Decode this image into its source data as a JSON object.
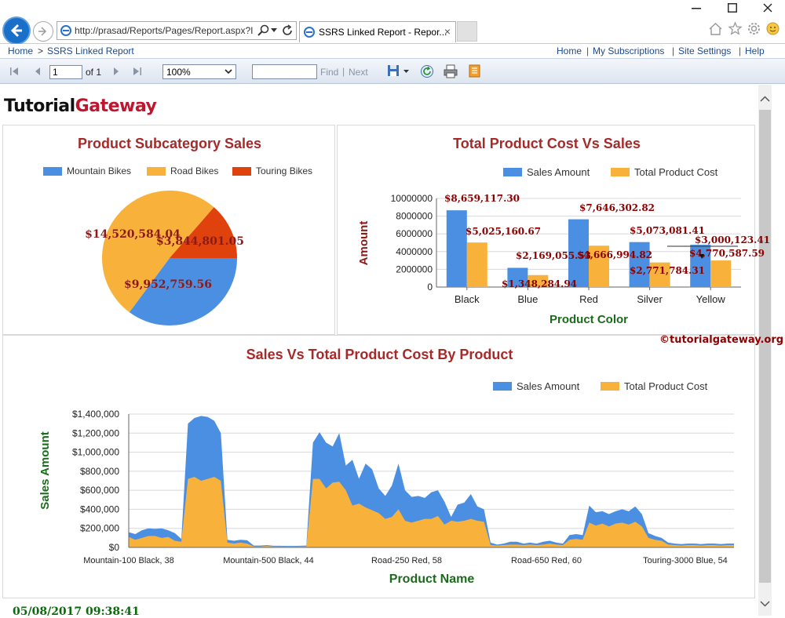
{
  "browser": {
    "address": "http://prasad/Reports/Pages/Report.aspx?I",
    "tab_title": "SSRS Linked Report - Repor...",
    "tab_close": "×"
  },
  "breadcrumb": {
    "home": "Home",
    "sep": ">",
    "current": "SSRS Linked Report"
  },
  "header_links": {
    "home": "Home",
    "subscriptions": "My Subscriptions",
    "settings": "Site Settings",
    "help": "Help",
    "sep": "|"
  },
  "toolbar": {
    "page": "1",
    "of_label": "of 1",
    "zoom": "100%",
    "find": "Find",
    "sep": "|",
    "next": "Next"
  },
  "logo": {
    "part1": "Tutorial",
    "part2": "Gateway"
  },
  "watermark": "©tutorialgateway.org",
  "timestamp": "05/08/2017 09:38:41",
  "colors": {
    "blue": "#4a8fe2",
    "orange": "#f8b23c",
    "red": "#e0420e",
    "title": "#a52a2a",
    "axis_title": "#1a6b1a"
  },
  "chart_data": [
    {
      "type": "pie",
      "title": "Product Subcategory Sales",
      "categories": [
        "Mountain Bikes",
        "Road Bikes",
        "Touring Bikes"
      ],
      "values": [
        9952759.56,
        14520584.04,
        3844801.05
      ],
      "labels": [
        "$9,952,759.56",
        "$14,520,584.04",
        "$3,844,801.05"
      ],
      "legend": "top"
    },
    {
      "type": "bar",
      "title": "Total Product Cost Vs Sales",
      "xlabel": "Product Color",
      "ylabel": "Amount",
      "categories": [
        "Black",
        "Blue",
        "Red",
        "Silver",
        "Yellow"
      ],
      "series": [
        {
          "name": "Sales Amount",
          "values": [
            8659117.3,
            2169055.53,
            7646302.82,
            5073081.41,
            4770587.59
          ],
          "labels": [
            "$8,659,117.30",
            "$2,169,055.53",
            "$7,646,302.82",
            "$5,073,081.41",
            "$4,770,587.59"
          ]
        },
        {
          "name": "Total Product Cost",
          "values": [
            5025160.67,
            1348284.94,
            4666994.82,
            2771784.31,
            3000123.41
          ],
          "labels": [
            "$5,025,160.67",
            "$1,348,284.94",
            "$4,666,994.82",
            "$2,771,784.31",
            "$3,000,123.41"
          ]
        }
      ],
      "yticks": [
        "10000000",
        "8000000",
        "6000000",
        "4000000",
        "2000000",
        "0"
      ],
      "ylim": [
        0,
        10000000
      ],
      "legend": "top-right",
      "grid": true
    },
    {
      "type": "area",
      "title": "Sales Vs Total Product Cost By Product",
      "xlabel": "Product Name",
      "ylabel": "Sales Amount",
      "xticks": [
        "Mountain-100 Black, 38",
        "Mountain-500 Black, 44",
        "Road-250 Red, 58",
        "Road-650 Red, 60",
        "Touring-3000 Blue, 54"
      ],
      "yticks": [
        "$1,400,000",
        "$1,200,000",
        "$1,000,000",
        "$800,000",
        "$600,000",
        "$400,000",
        "$200,000",
        "$0"
      ],
      "ylim": [
        0,
        1400000
      ],
      "legend": "top-right",
      "grid": true,
      "series": [
        {
          "name": "Sales Amount",
          "values": [
            160000,
            140000,
            180000,
            200000,
            195000,
            200000,
            180000,
            150000,
            90000,
            1300000,
            1360000,
            1380000,
            1370000,
            1330000,
            1200000,
            80000,
            70000,
            80000,
            75000,
            20000,
            20000,
            25000,
            18000,
            18000,
            15000,
            15000,
            18000,
            20000,
            1100000,
            1210000,
            1100000,
            1060000,
            1200000,
            860000,
            920000,
            720000,
            880000,
            820000,
            620000,
            540000,
            650000,
            880000,
            600000,
            530000,
            540000,
            520000,
            580000,
            600000,
            480000,
            320000,
            450000,
            470000,
            560000,
            430000,
            400000,
            50000,
            30000,
            40000,
            60000,
            60000,
            40000,
            50000,
            40000,
            60000,
            70000,
            50000,
            40000,
            130000,
            140000,
            130000,
            440000,
            370000,
            380000,
            350000,
            380000,
            400000,
            380000,
            430000,
            350000,
            150000,
            120000,
            100000,
            50000,
            40000,
            35000,
            40000,
            40000,
            35000,
            40000,
            40000,
            35000,
            40000,
            40000
          ]
        },
        {
          "name": "Total Product Cost",
          "values": [
            110000,
            80000,
            100000,
            120000,
            120000,
            100000,
            110000,
            70000,
            60000,
            720000,
            740000,
            700000,
            720000,
            740000,
            700000,
            50000,
            40000,
            50000,
            40000,
            10000,
            10000,
            15000,
            10000,
            10000,
            8000,
            8000,
            10000,
            10000,
            720000,
            720000,
            620000,
            680000,
            690000,
            600000,
            440000,
            460000,
            420000,
            390000,
            360000,
            300000,
            320000,
            400000,
            280000,
            260000,
            280000,
            300000,
            300000,
            330000,
            240000,
            280000,
            270000,
            280000,
            300000,
            280000,
            270000,
            25000,
            20000,
            25000,
            30000,
            30000,
            25000,
            30000,
            25000,
            30000,
            40000,
            30000,
            25000,
            80000,
            90000,
            80000,
            260000,
            230000,
            250000,
            220000,
            250000,
            260000,
            240000,
            270000,
            220000,
            100000,
            80000,
            70000,
            30000,
            25000,
            20000,
            25000,
            25000,
            20000,
            25000,
            25000,
            20000,
            25000,
            25000
          ]
        }
      ]
    }
  ]
}
